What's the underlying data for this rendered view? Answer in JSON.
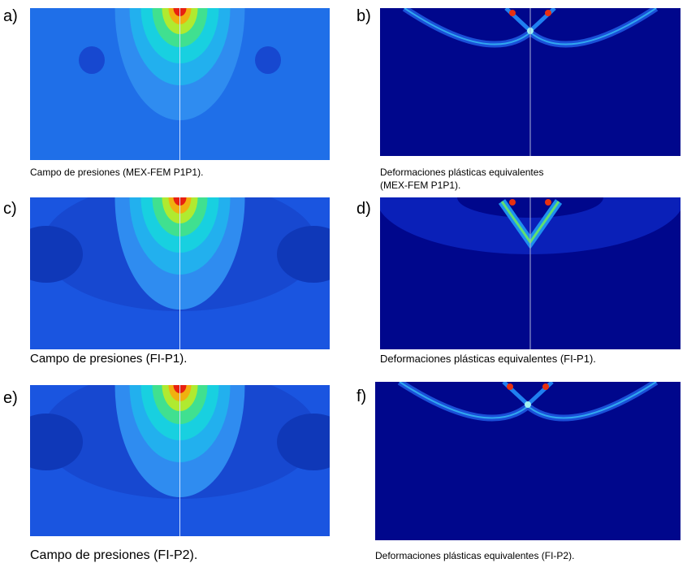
{
  "panels": [
    {
      "label": "a)",
      "caption": [
        "Campo de presiones (MEX-FEM P1P1)."
      ]
    },
    {
      "label": "b)",
      "caption": [
        "Deformaciones plásticas equivalentes",
        "(MEX-FEM P1P1)."
      ]
    },
    {
      "label": "c)",
      "caption": [
        "Campo de presiones (FI-P1)."
      ]
    },
    {
      "label": "d)",
      "caption": [
        "Deformaciones plásticas equivalentes (FI-P1)."
      ]
    },
    {
      "label": "e)",
      "caption": [
        "Campo de presiones (FI-P2)."
      ]
    },
    {
      "label": "f)",
      "caption": [
        "Deformaciones plásticas equivalentes (FI-P2)."
      ]
    }
  ]
}
